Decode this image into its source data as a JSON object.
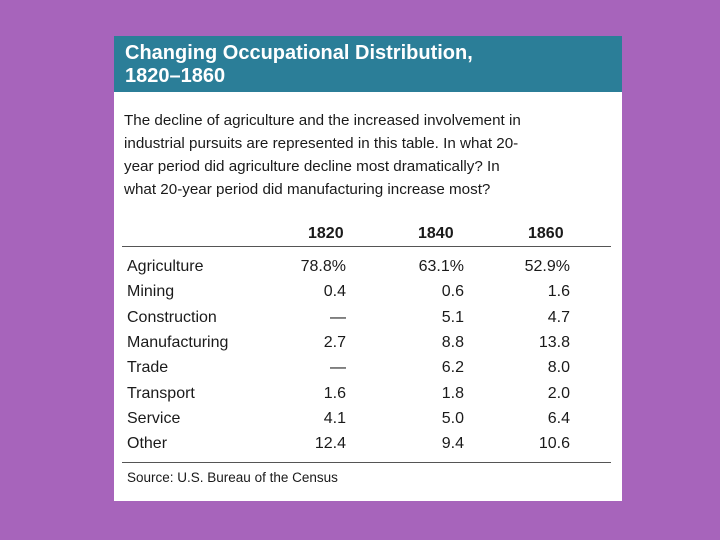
{
  "chart_data": {
    "type": "table",
    "title": "Changing Occupational Distribution, 1820–1860",
    "title_lines": [
      "Changing Occupational Distribution,",
      "1820–1860"
    ],
    "description_lines": [
      "The decline of agriculture and the increased involvement in",
      "industrial pursuits are represented in this table. In what 20-",
      "year period did agriculture decline most dramatically? In",
      "what 20-year period did manufacturing increase most?"
    ],
    "columns": [
      "1820",
      "1840",
      "1860"
    ],
    "rows": [
      {
        "label": "Agriculture",
        "values": [
          "78.8%",
          "63.1%",
          "52.9%"
        ]
      },
      {
        "label": "Mining",
        "values": [
          "0.4",
          "0.6",
          "1.6"
        ]
      },
      {
        "label": "Construction",
        "values": [
          "—",
          "5.1",
          "4.7"
        ]
      },
      {
        "label": "Manufacturing",
        "values": [
          "2.7",
          "8.8",
          "13.8"
        ]
      },
      {
        "label": "Trade",
        "values": [
          "—",
          "6.2",
          "8.0"
        ]
      },
      {
        "label": "Transport",
        "values": [
          "1.6",
          "1.8",
          "2.0"
        ]
      },
      {
        "label": "Service",
        "values": [
          "4.1",
          "5.0",
          "6.4"
        ]
      },
      {
        "label": "Other",
        "values": [
          "12.4",
          "9.4",
          "10.6"
        ]
      }
    ],
    "source": "Source: U.S. Bureau of the Census"
  },
  "colors": {
    "background": "#a764bb",
    "header": "#2b7e98",
    "card": "#ffffff"
  }
}
